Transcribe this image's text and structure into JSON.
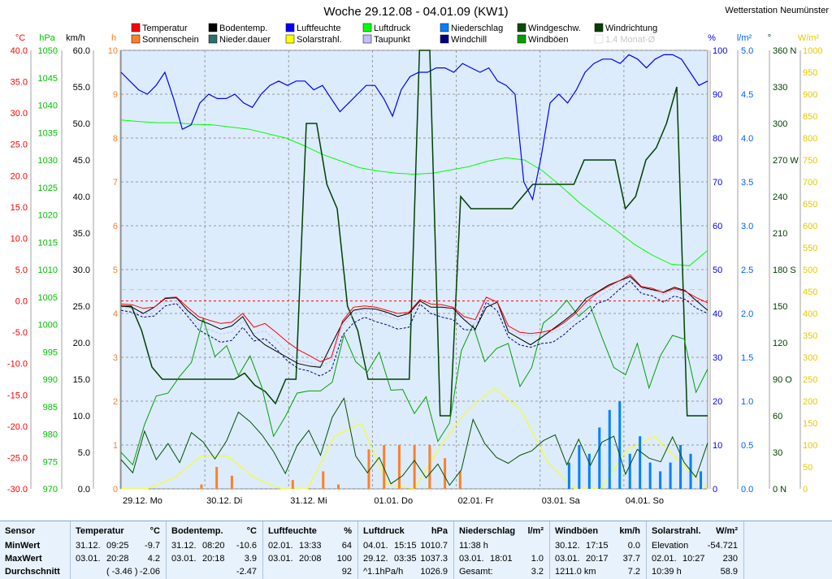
{
  "chart_data": {
    "type": "line",
    "title": "Woche 29.12.08 - 04.01.09 (KW1)",
    "station": "Wetterstation Neumünster",
    "x_ticks": [
      "29.12. Mo",
      "30.12. Di",
      "31.12. Mi",
      "01.01. Do",
      "02.01. Fr",
      "03.01. Sa",
      "04.01. So"
    ],
    "legend": [
      {
        "name": "Temperatur",
        "color": "#ff0000"
      },
      {
        "name": "Sonnenschein",
        "color": "#ff7f27"
      },
      {
        "name": "Bodentemp.",
        "color": "#000000"
      },
      {
        "name": "Nieder.dauer",
        "color": "#2f6f6f"
      },
      {
        "name": "Luftfeuchte",
        "color": "#0000ff"
      },
      {
        "name": "Solarstrahl.",
        "color": "#ffff00"
      },
      {
        "name": "Luftdruck",
        "color": "#00ff00"
      },
      {
        "name": "Taupunkt",
        "color": "#c0c0ff"
      },
      {
        "name": "Niederschlag",
        "color": "#0080ff"
      },
      {
        "name": "Windchill",
        "color": "#000080"
      },
      {
        "name": "Windgeschw.",
        "color": "#005000"
      },
      {
        "name": "Windböen",
        "color": "#00a000"
      },
      {
        "name": "Windrichtung",
        "color": "#004000"
      },
      {
        "name": "1.4 Monat-Ø",
        "color": "#c8c8c8"
      }
    ],
    "axes": {
      "temp": {
        "unit": "°C",
        "color": "#ff0000",
        "ticks": [
          "40.0",
          "35.0",
          "30.0",
          "25.0",
          "20.0",
          "15.0",
          "10.0",
          "5.0",
          "0.0",
          "-5.0",
          "-10.0",
          "-15.0",
          "-20.0",
          "-25.0",
          "-30.0"
        ]
      },
      "pressure": {
        "unit": "hPa",
        "color": "#00c000",
        "ticks": [
          "1050",
          "1045",
          "1040",
          "1035",
          "1030",
          "1025",
          "1020",
          "1015",
          "1010",
          "1005",
          "1000",
          "995",
          "990",
          "985",
          "980",
          "975",
          "970"
        ]
      },
      "wind": {
        "unit": "km/h",
        "color": "#000000",
        "ticks": [
          "60.0",
          "55.0",
          "50.0",
          "45.0",
          "40.0",
          "35.0",
          "30.0",
          "25.0",
          "20.0",
          "15.0",
          "10.0",
          "5.0",
          "0.0"
        ]
      },
      "sun": {
        "unit": "h",
        "color": "#ff7f27",
        "ticks": [
          "10",
          "9",
          "8",
          "7",
          "6",
          "5",
          "4",
          "3",
          "2",
          "1",
          "0"
        ]
      },
      "humidity": {
        "unit": "%",
        "color": "#0000ff",
        "ticks": [
          "100",
          "90",
          "80",
          "70",
          "60",
          "50",
          "40",
          "30",
          "20",
          "10",
          "0"
        ]
      },
      "rain": {
        "unit": "l/m²",
        "color": "#0060ff",
        "ticks": [
          "5.0",
          "4.5",
          "4.0",
          "3.5",
          "3.0",
          "2.5",
          "2.0",
          "1.5",
          "1.0",
          "0.5",
          "0.0"
        ]
      },
      "direction": {
        "unit": "°",
        "color": "#004000",
        "ticks": [
          "360 N",
          "330",
          "300",
          "270 W",
          "240",
          "210",
          "180 S",
          "150",
          "120",
          "90 O",
          "60",
          "30",
          "0 N"
        ]
      },
      "solar": {
        "unit": "W/m²",
        "color": "#e8c800",
        "ticks": [
          "1000",
          "950",
          "900",
          "850",
          "800",
          "750",
          "700",
          "650",
          "600",
          "550",
          "500",
          "450",
          "400",
          "350",
          "300",
          "250",
          "200",
          "150",
          "100",
          "50",
          "0"
        ]
      }
    },
    "series": [
      {
        "name": "Luftfeuchte",
        "axis": "humidity",
        "color": "#0000ff",
        "values": [
          95,
          93,
          91,
          90,
          92,
          95,
          89,
          82,
          83,
          88,
          90,
          89,
          89,
          90,
          88,
          87,
          90,
          92,
          93,
          92,
          93,
          93,
          91,
          92,
          89,
          86,
          88,
          90,
          92,
          92,
          89,
          85,
          91,
          94,
          95,
          95,
          96,
          96,
          95,
          97,
          96,
          95,
          96,
          93,
          92,
          90,
          70,
          66,
          76,
          88,
          90,
          88,
          91,
          95,
          97,
          98,
          98,
          97,
          99,
          98,
          96,
          98,
          99,
          99,
          98,
          95,
          92,
          93
        ]
      },
      {
        "name": "Luftdruck",
        "axis": "pressure",
        "color": "#00ff00",
        "values": [
          1037.3,
          1037,
          1036.8,
          1036.8,
          1036.5,
          1036.4,
          1036,
          1035.6,
          1034.8,
          1034,
          1032.6,
          1031,
          1029.8,
          1028.6,
          1028,
          1027.6,
          1027.4,
          1027.6,
          1028.2,
          1028.8,
          1029.8,
          1030.4,
          1030,
          1028,
          1025.2,
          1022.2,
          1019.6,
          1017.2,
          1014.6,
          1012.6,
          1011,
          1010.7,
          1013.5
        ]
      },
      {
        "name": "Temperatur",
        "axis": "temp",
        "color": "#ff0000",
        "values": [
          -0.5,
          -0.6,
          -1.2,
          -1,
          0.5,
          0.6,
          -1,
          -2.5,
          -3.1,
          -3.6,
          -3.4,
          -2,
          -4.2,
          -3.6,
          -5,
          -6.5,
          -7.8,
          -8.7,
          -9.7,
          -9,
          -3.2,
          -1,
          -0.8,
          -1,
          -1.5,
          -2,
          -1.8,
          0.2,
          -0.5,
          -0.6,
          -1,
          -2.5,
          -3,
          0.6,
          -0.2,
          -4,
          -5,
          -5.2,
          -5,
          -4.6,
          -3.5,
          -2.1,
          -0.2,
          1.3,
          2.3,
          3.2,
          4.2,
          2.3,
          2,
          1.3,
          2,
          1.5,
          0.5,
          -0.3
        ]
      },
      {
        "name": "Bodentemp.",
        "axis": "temp",
        "color": "#000000",
        "values": [
          -0.8,
          -1,
          -2,
          -1,
          0.4,
          0.5,
          -1.5,
          -3,
          -3.7,
          -4.5,
          -4,
          -2.5,
          -5.5,
          -7,
          -8,
          -9,
          -10,
          -10.4,
          -10.6,
          -7,
          -3.5,
          -1.5,
          -1.2,
          -1.3,
          -1.8,
          -2.5,
          -2,
          0,
          -1,
          -1,
          -1.2,
          -3,
          -4.5,
          -1,
          -0.2,
          -5,
          -6,
          -7,
          -5.8,
          -4.5,
          -3.2,
          -1.8,
          0.4,
          1.4,
          2.5,
          3.2,
          3.9,
          2.2,
          1.8,
          1.4,
          2.2,
          1.6,
          0,
          -1.5
        ]
      },
      {
        "name": "Taupunkt",
        "axis": "temp",
        "color": "#c0c0ff",
        "values": [
          -1,
          -1.2,
          -1.8,
          -1.5,
          -0.2,
          0,
          -1.8,
          -3.8,
          -4.6,
          -5.3,
          -5,
          -3.2,
          -5.2,
          -4.8,
          -6.3,
          -8.2,
          -9.5,
          -9.8,
          -10.5,
          -9.6,
          -4,
          -2,
          -1.5,
          -2,
          -2.4,
          -3,
          -2.5,
          -0.2,
          -1,
          -1.1,
          -1.6,
          -3,
          -3.6,
          0.5,
          -0.6,
          -4.5,
          -5.4,
          -5.6,
          -5.3,
          -5,
          -4.2,
          -3,
          -0.8,
          0.5,
          1.6,
          2.8,
          3.7,
          2,
          1.6,
          1,
          1.7,
          1,
          0,
          -0.8
        ]
      },
      {
        "name": "Windchill",
        "axis": "temp",
        "color": "#000080",
        "values": [
          -1.5,
          -1.8,
          -2.6,
          -2.4,
          -0.8,
          -0.4,
          -2.4,
          -4.6,
          -5.6,
          -6.6,
          -6.3,
          -4.2,
          -6.4,
          -6,
          -7.6,
          -9.5,
          -10.8,
          -11.2,
          -12,
          -11,
          -5.5,
          -3.5,
          -2.6,
          -3.3,
          -3.8,
          -4.5,
          -4.2,
          -0.5,
          -2,
          -2.6,
          -3,
          -4.6,
          -4.6,
          -0.2,
          -1.6,
          -5.8,
          -7,
          -7.4,
          -6.8,
          -6.6,
          -5.4,
          -3.8,
          -2.6,
          -0.4,
          0.2,
          1.8,
          3.2,
          1.2,
          0.8,
          -0.2,
          0.8,
          0.2,
          -1.2,
          -2
        ]
      },
      {
        "name": "Windgeschw.",
        "axis": "wind",
        "color": "#005000",
        "values": [
          4.0,
          2.2,
          7.9,
          4.0,
          6.2,
          3.6,
          7.7,
          6.4,
          4.1,
          6.6,
          10.5,
          9.2,
          7.4,
          5.1,
          2.1,
          5.9,
          8.0,
          4.6,
          9.8,
          12.4,
          4.5,
          2.2,
          4.3,
          0.7,
          1.8,
          3.9,
          1.5,
          3.4,
          0.5,
          2.6,
          9.5,
          6.2,
          4.3,
          3.5,
          4.6,
          5.2,
          6.6,
          7.4,
          3.3,
          6.8,
          3.2,
          6.4,
          7.2,
          2.0,
          5.4,
          4.2,
          3.7,
          7.1,
          3.6,
          1.6,
          6.3
        ]
      },
      {
        "name": "Windböen",
        "axis": "wind",
        "color": "#00a000",
        "values": [
          5.0,
          3.3,
          8.8,
          12.7,
          13.1,
          15.4,
          17.3,
          23.3,
          18.1,
          19.6,
          15.5,
          18.2,
          13.9,
          7.2,
          9.9,
          13.1,
          13.4,
          13.4,
          14.6,
          21.1,
          17.4,
          16.0,
          18.7,
          13.5,
          13.6,
          10.3,
          12.6,
          6.5,
          9.0,
          18.9,
          22.4,
          17.4,
          19.2,
          19.9,
          14.0,
          16.6,
          22.7,
          24.0,
          25.8,
          23.6,
          25.0,
          20.7,
          16.6,
          15.6,
          19.9,
          13.8,
          18.3,
          21.0,
          20.5,
          13.2,
          16.4
        ]
      },
      {
        "name": "Windrichtung",
        "axis": "direction",
        "color": "#004000",
        "values": [
          150,
          150,
          130,
          100,
          90,
          90,
          90,
          90,
          90,
          90,
          90,
          90,
          95,
          85,
          80,
          70,
          90,
          90,
          300,
          300,
          250,
          230,
          150,
          130,
          90,
          90,
          90,
          90,
          90,
          360,
          360,
          60,
          60,
          240,
          230,
          230,
          230,
          230,
          230,
          240,
          250,
          250,
          250,
          250,
          250,
          270,
          270,
          270,
          270,
          230,
          240,
          270,
          280,
          300,
          330,
          60,
          60,
          60
        ]
      },
      {
        "name": "Sonnenschein",
        "axis": "sun",
        "color": "#ff7f27",
        "values": [
          0,
          0,
          0.1,
          0.5,
          0.3,
          0,
          0,
          0,
          0.2,
          0,
          0.4,
          0.1,
          0,
          0.9,
          1,
          1,
          1,
          1,
          0.7,
          0.4,
          0,
          0,
          0
        ]
      },
      {
        "name": "Solarstrahl.",
        "axis": "solar",
        "color": "#ffff00",
        "values": [
          0,
          0,
          25,
          75,
          75,
          25,
          0,
          0,
          120,
          150,
          10,
          0,
          100,
          180,
          230,
          180,
          60,
          0,
          0,
          90,
          120,
          60,
          0
        ]
      },
      {
        "name": "Niederschlag",
        "axis": "rain",
        "color": "#0080ff",
        "values": [
          0,
          0,
          0,
          0,
          0.3,
          0.5,
          0.4,
          0.7,
          0.9,
          1.0,
          0.4,
          0.6,
          0.3,
          0.2,
          0.3,
          0.5,
          0.4,
          0.2
        ]
      }
    ],
    "reference_line_value": "0.0 °C"
  },
  "stats": {
    "sensor_header": "Sensor",
    "row_labels": [
      "MinWert",
      "MaxWert",
      "Durchschnitt"
    ],
    "blocks": [
      {
        "title": "Temperatur",
        "unit": "°C",
        "rows": [
          [
            "31.12.",
            "09:25",
            "-9.7"
          ],
          [
            "03.01.",
            "20:28",
            "4.2"
          ],
          [
            "",
            "( -3.46 )",
            "-2.06"
          ]
        ]
      },
      {
        "title": "Bodentemp.",
        "unit": "°C",
        "rows": [
          [
            "31.12.",
            "08:20",
            "-10.6"
          ],
          [
            "03.01.",
            "20:18",
            "3.9"
          ],
          [
            "",
            "",
            "-2.47"
          ]
        ]
      },
      {
        "title": "Luftfeuchte",
        "unit": "%",
        "rows": [
          [
            "02.01.",
            "13:33",
            "64"
          ],
          [
            "03.01.",
            "20:08",
            "100"
          ],
          [
            "",
            "",
            "92"
          ]
        ]
      },
      {
        "title": "Luftdruck",
        "unit": "hPa",
        "rows": [
          [
            "04.01.",
            "15:15",
            "1010.7"
          ],
          [
            "29.12.",
            "03:35",
            "1037.3"
          ],
          [
            "^1.1hPa/h",
            "",
            "1026.9"
          ]
        ]
      },
      {
        "title": "Niederschlag",
        "unit": "l/m²",
        "rows": [
          [
            "11:38 h",
            "",
            ""
          ],
          [
            "03.01.",
            "18:01",
            "1.0"
          ],
          [
            "Gesamt:",
            "",
            "3.2"
          ]
        ]
      },
      {
        "title": "Windböen",
        "unit": "km/h",
        "rows": [
          [
            "30.12.",
            "17:15",
            "0.0"
          ],
          [
            "03.01.",
            "20:17",
            "37.7"
          ],
          [
            "1211.0 km",
            "",
            "7.2"
          ]
        ]
      },
      {
        "title": "Solarstrahl.",
        "unit": "W/m²",
        "rows": [
          [
            "Elevation",
            "",
            "-54.721"
          ],
          [
            "02.01.",
            "10:27",
            "230"
          ],
          [
            "10:39 h",
            "",
            "58.9"
          ]
        ]
      }
    ]
  }
}
